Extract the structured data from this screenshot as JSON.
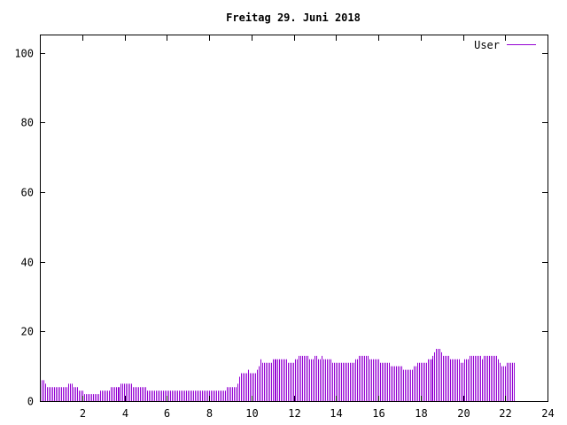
{
  "chart_data": {
    "type": "bar",
    "title": "Freitag 29. Juni 2018",
    "xlabel": "",
    "ylabel": "",
    "xlim": [
      0,
      24
    ],
    "ylim": [
      0,
      105
    ],
    "xticks": [
      2,
      4,
      6,
      8,
      10,
      12,
      14,
      16,
      18,
      20,
      22,
      24
    ],
    "yticks": [
      0,
      20,
      40,
      60,
      80,
      100
    ],
    "grid": false,
    "legend_position": "top-right",
    "series": [
      {
        "name": "User",
        "color": "#9400d3",
        "bar_interval_hours": 0.0833,
        "values": [
          8,
          6,
          6,
          5,
          4,
          4,
          4,
          4,
          4,
          4,
          4,
          4,
          4,
          4,
          4,
          4,
          5,
          5,
          5,
          4,
          4,
          4,
          3,
          3,
          3,
          2,
          2,
          2,
          2,
          2,
          2,
          2,
          2,
          2,
          3,
          3,
          3,
          3,
          3,
          3,
          4,
          4,
          4,
          4,
          4,
          4,
          5,
          5,
          5,
          5,
          5,
          5,
          5,
          4,
          4,
          4,
          4,
          4,
          4,
          4,
          4,
          3,
          3,
          3,
          3,
          3,
          3,
          3,
          3,
          3,
          3,
          3,
          3,
          3,
          3,
          3,
          3,
          3,
          3,
          3,
          3,
          3,
          3,
          3,
          3,
          3,
          3,
          3,
          3,
          3,
          3,
          3,
          3,
          3,
          3,
          3,
          3,
          3,
          3,
          3,
          3,
          3,
          3,
          3,
          3,
          3,
          4,
          4,
          4,
          4,
          4,
          4,
          5,
          7,
          8,
          8,
          8,
          8,
          9,
          8,
          8,
          8,
          8,
          9,
          10,
          12,
          11,
          11,
          11,
          11,
          11,
          11,
          12,
          12,
          12,
          12,
          12,
          12,
          12,
          12,
          12,
          11,
          11,
          11,
          11,
          12,
          12,
          13,
          13,
          13,
          13,
          13,
          13,
          12,
          12,
          12,
          13,
          13,
          12,
          12,
          13,
          12,
          12,
          12,
          12,
          12,
          11,
          11,
          11,
          11,
          11,
          11,
          11,
          11,
          11,
          11,
          11,
          11,
          11,
          12,
          12,
          13,
          13,
          13,
          13,
          13,
          13,
          12,
          12,
          12,
          12,
          12,
          12,
          11,
          11,
          11,
          11,
          11,
          11,
          10,
          10,
          10,
          10,
          10,
          10,
          10,
          9,
          9,
          9,
          9,
          9,
          9,
          10,
          10,
          11,
          11,
          11,
          11,
          11,
          11,
          12,
          12,
          12,
          13,
          14,
          15,
          15,
          15,
          14,
          13,
          13,
          13,
          13,
          12,
          12,
          12,
          12,
          12,
          12,
          11,
          11,
          12,
          12,
          12,
          13,
          13,
          13,
          13,
          13,
          13,
          13,
          12,
          13,
          13,
          13,
          13,
          13,
          13,
          13,
          13,
          12,
          11,
          10,
          10,
          10,
          11,
          11,
          11,
          11,
          11
        ]
      }
    ]
  }
}
